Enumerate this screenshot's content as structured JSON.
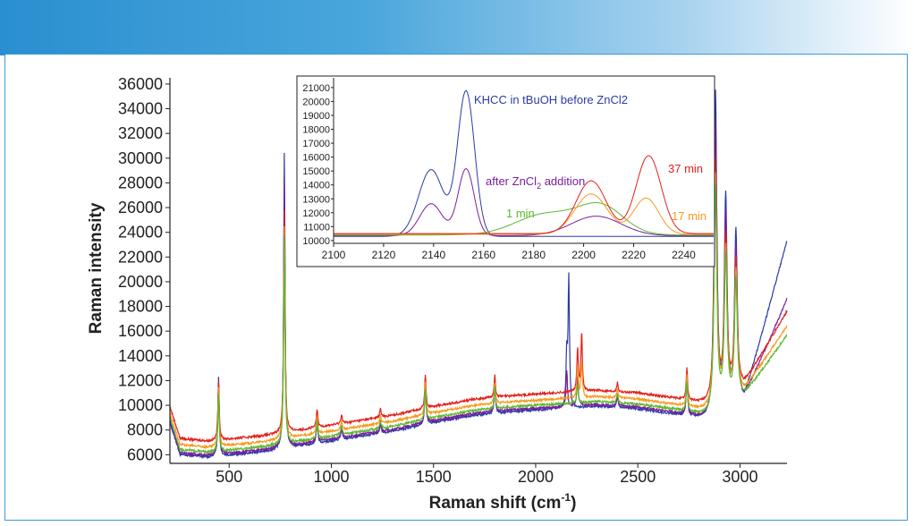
{
  "colors": {
    "header_start": "#2a8fd0",
    "frame": "#3d9ad6",
    "blue": "#2c3aa6",
    "purple": "#7a1f9c",
    "red": "#e3201b",
    "orange": "#f59a1d",
    "green": "#5cb82e"
  },
  "chart_data": [
    {
      "type": "line",
      "xlabel_main": "Raman shift (cm",
      "xlabel_sup": "-1",
      "xlabel_tail": ")",
      "ylabel": "Raman intensity",
      "xlim": [
        210,
        3230
      ],
      "ylim": [
        5300,
        36500
      ],
      "xticks": [
        500,
        1000,
        1500,
        2000,
        2500,
        3000
      ],
      "yticks": [
        6000,
        8000,
        10000,
        12000,
        14000,
        16000,
        18000,
        20000,
        22000,
        24000,
        26000,
        28000,
        30000,
        32000,
        34000,
        36000
      ],
      "baseline": [
        [
          210,
          6500
        ],
        [
          400,
          6200
        ],
        [
          700,
          6700
        ],
        [
          1000,
          7500
        ],
        [
          1300,
          8300
        ],
        [
          1500,
          9000
        ],
        [
          1700,
          9600
        ],
        [
          1900,
          9900
        ],
        [
          2100,
          10100
        ],
        [
          2300,
          10300
        ],
        [
          2500,
          10100
        ],
        [
          2700,
          9600
        ],
        [
          2850,
          9100
        ],
        [
          3050,
          11000
        ],
        [
          3230,
          12500
        ]
      ],
      "series": [
        {
          "name": "blue",
          "color": "#2c3aa6",
          "offset": -400,
          "scale": 1.0,
          "tail": 16000,
          "extra": [
            [
              2162,
              10500
            ],
            [
              2152,
              4000
            ]
          ]
        },
        {
          "name": "purple",
          "color": "#7a1f9c",
          "offset": -250,
          "scale": 0.9,
          "tail": 9000,
          "extra": [
            [
              2152,
              3000
            ],
            [
              2205,
              2500
            ]
          ]
        },
        {
          "name": "red",
          "color": "#e3201b",
          "offset": 900,
          "scale": 0.75,
          "tail": 6000,
          "extra": [
            [
              2225,
              4800
            ],
            [
              2205,
              3500
            ]
          ]
        },
        {
          "name": "orange",
          "color": "#f59a1d",
          "offset": 400,
          "scale": 0.72,
          "tail": 5000,
          "extra": [
            [
              2225,
              3000
            ],
            [
              2205,
              2500
            ]
          ]
        },
        {
          "name": "green",
          "color": "#5cb82e",
          "offset": 0,
          "scale": 0.7,
          "tail": 4500,
          "extra": [
            [
              2205,
              1500
            ]
          ]
        }
      ],
      "peaks": [
        [
          448,
          6500
        ],
        [
          770,
          24000
        ],
        [
          930,
          2000
        ],
        [
          1050,
          1000
        ],
        [
          1240,
          900
        ],
        [
          1460,
          3600
        ],
        [
          1800,
          2400
        ],
        [
          2400,
          1000
        ],
        [
          2740,
          3500
        ],
        [
          2880,
          26000
        ],
        [
          2930,
          17000
        ],
        [
          2980,
          14000
        ]
      ]
    },
    {
      "type": "line",
      "xlim": [
        2100,
        2252
      ],
      "ylim": [
        9800,
        21700
      ],
      "xticks": [
        2100,
        2120,
        2140,
        2160,
        2180,
        2200,
        2220,
        2240
      ],
      "yticks": [
        10000,
        11000,
        12000,
        13000,
        14000,
        15000,
        16000,
        17000,
        18000,
        19000,
        20000,
        21000
      ],
      "annotations": {
        "blue": "KHCC in tBuOH before ZnCl2",
        "purple_pre": "after ZnCl",
        "purple_sub": "2",
        "purple_post": " addition",
        "green": "1 min",
        "red": "37 min",
        "orange": "17 min"
      },
      "series": [
        {
          "name": "KHCC in tBuOH before ZnCl2",
          "color": "#2c3aa6",
          "peaks": [
            [
              2139,
              4800,
              5
            ],
            [
              2153,
              10400,
              3.4
            ]
          ]
        },
        {
          "name": "after ZnCl2 addition",
          "color": "#7a1f9c",
          "peaks": [
            [
              2139,
              2300,
              4.5
            ],
            [
              2153,
              4800,
              3.2
            ],
            [
              2205,
              1400,
              10
            ]
          ]
        },
        {
          "name": "1 min",
          "color": "#5cb82e",
          "peaks": [
            [
              2185,
              1500,
              12
            ],
            [
              2207,
              2000,
              9
            ]
          ]
        },
        {
          "name": "17 min",
          "color": "#f59a1d",
          "peaks": [
            [
              2203,
              2900,
              6.5
            ],
            [
              2225,
              2600,
              5
            ]
          ]
        },
        {
          "name": "37 min",
          "color": "#e3201b",
          "peaks": [
            [
              2203,
              3800,
              6
            ],
            [
              2226,
              5600,
              5
            ]
          ]
        }
      ]
    }
  ]
}
